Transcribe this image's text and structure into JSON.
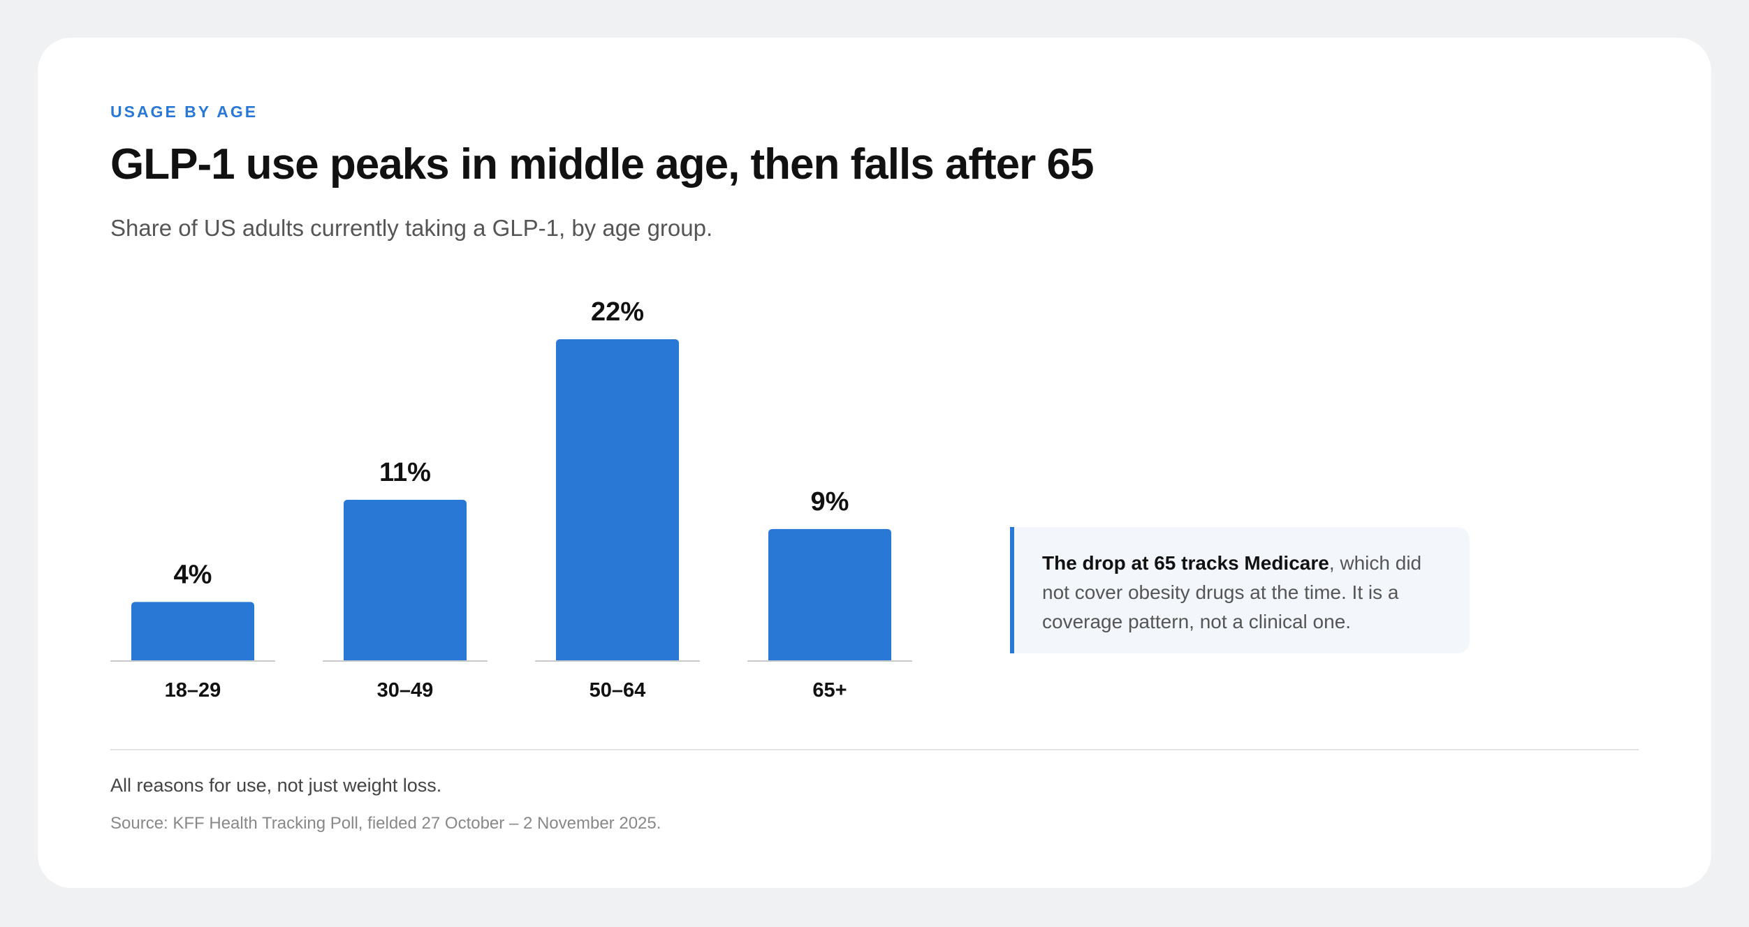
{
  "header": {
    "eyebrow": "USAGE BY AGE",
    "title": "GLP-1 use peaks in middle age, then falls after 65",
    "subtitle": "Share of US adults currently taking a GLP-1, by age group."
  },
  "callout": {
    "bold": "The drop at 65 tracks Medicare",
    "text": ", which did not cover obesity drugs at the time. It is a coverage pattern, not a clinical one."
  },
  "footer": {
    "note": "All reasons for use, not just weight loss.",
    "source": "Source: KFF Health Tracking Poll, fielded 27 October – 2 November 2025."
  },
  "colors": {
    "bar": "#2a78d6",
    "accent": "#2a78d6",
    "value_label": "#111111",
    "category_label": "#111111",
    "baseline": "#c8c9cc"
  },
  "chart_data": {
    "type": "bar",
    "title": "GLP-1 use peaks in middle age, then falls after 65",
    "xlabel": "",
    "ylabel": "",
    "categories": [
      "18–29",
      "30–49",
      "50–64",
      "65+"
    ],
    "values": [
      4,
      11,
      22,
      9
    ],
    "value_labels": [
      "4%",
      "11%",
      "22%",
      "9%"
    ],
    "ylim": [
      0,
      22
    ],
    "grid": false,
    "legend": "none"
  }
}
